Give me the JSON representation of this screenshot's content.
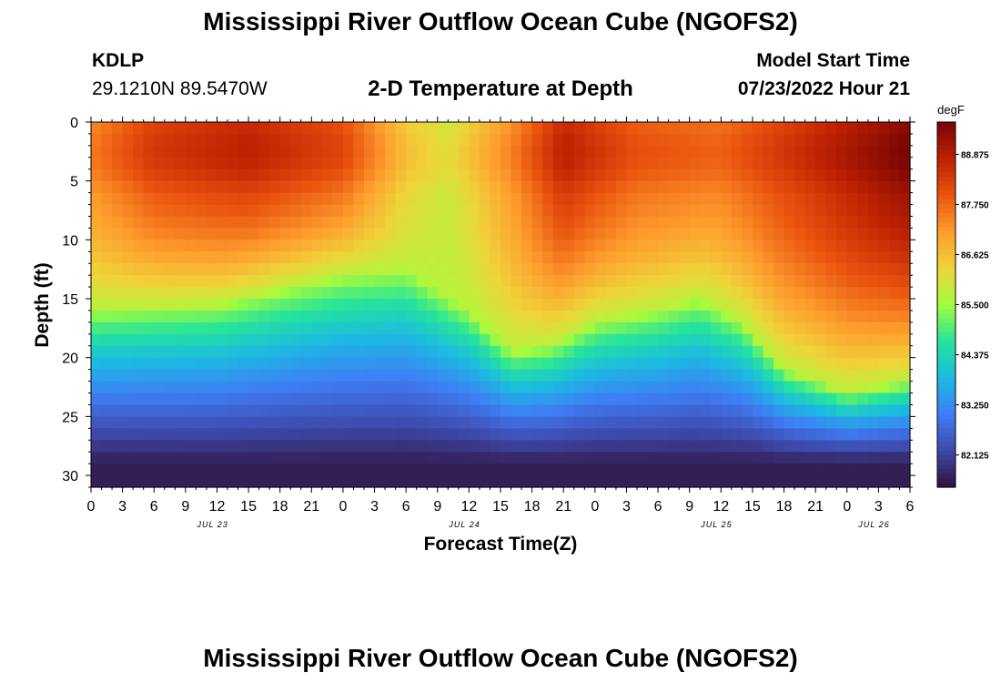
{
  "header": {
    "title": "Mississippi River Outflow Ocean Cube (NGOFS2)",
    "station": "KDLP",
    "coordinates": "29.1210N  89.5470W",
    "subtitle": "2-D Temperature at Depth",
    "model_start_label": "Model Start Time",
    "model_start_value": "07/23/2022 Hour 21"
  },
  "footer": {
    "title": "Mississippi River Outflow Ocean Cube (NGOFS2)"
  },
  "chart_data": {
    "type": "heatmap",
    "xlabel": "Forecast Time(Z)",
    "ylabel": "Depth (ft)",
    "x_hours": [
      0,
      78
    ],
    "ylim": [
      0,
      31
    ],
    "x_tick_labels": [
      "0",
      "3",
      "6",
      "9",
      "12",
      "15",
      "18",
      "21",
      "0",
      "3",
      "6",
      "9",
      "12",
      "15",
      "18",
      "21",
      "0",
      "3",
      "6",
      "9",
      "12",
      "15",
      "18",
      "21",
      "0",
      "3",
      "6"
    ],
    "date_labels": [
      {
        "label": "JUL 23",
        "hour": 12
      },
      {
        "label": "JUL 24",
        "hour": 36
      },
      {
        "label": "JUL 25",
        "hour": 60
      },
      {
        "label": "JUL 26",
        "hour": 75
      }
    ],
    "y_ticks": [
      0,
      5,
      10,
      15,
      20,
      25,
      30
    ],
    "colorbar": {
      "unit": "degF",
      "range": [
        81.4,
        89.6
      ],
      "tick_values": [
        82.125,
        83.25,
        84.375,
        85.5,
        86.625,
        87.75,
        88.875
      ],
      "tick_labels": [
        "82.125",
        "83.250",
        "84.375",
        "85.500",
        "86.625",
        "87.750",
        "88.875"
      ]
    },
    "surface_temperature_profile": [
      {
        "hour": 0,
        "temp": 87.3
      },
      {
        "hour": 6,
        "temp": 88.2
      },
      {
        "hour": 15,
        "temp": 88.6
      },
      {
        "hour": 24,
        "temp": 88.0
      },
      {
        "hour": 30,
        "temp": 86.4
      },
      {
        "hour": 34,
        "temp": 85.9
      },
      {
        "hour": 40,
        "temp": 87.2
      },
      {
        "hour": 45,
        "temp": 88.6
      },
      {
        "hour": 52,
        "temp": 87.8
      },
      {
        "hour": 60,
        "temp": 87.6
      },
      {
        "hour": 68,
        "temp": 88.4
      },
      {
        "hour": 78,
        "temp": 89.4
      }
    ],
    "thermocline_depth_profile": [
      {
        "hour": 0,
        "depth_ft": 16
      },
      {
        "hour": 12,
        "depth_ft": 15.5
      },
      {
        "hour": 24,
        "depth_ft": 13
      },
      {
        "hour": 30,
        "depth_ft": 12.5
      },
      {
        "hour": 36,
        "depth_ft": 16
      },
      {
        "hour": 40,
        "depth_ft": 19.5
      },
      {
        "hour": 44,
        "depth_ft": 19
      },
      {
        "hour": 48,
        "depth_ft": 17
      },
      {
        "hour": 54,
        "depth_ft": 16
      },
      {
        "hour": 58,
        "depth_ft": 15
      },
      {
        "hour": 62,
        "depth_ft": 17
      },
      {
        "hour": 66,
        "depth_ft": 21
      },
      {
        "hour": 72,
        "depth_ft": 23
      },
      {
        "hour": 78,
        "depth_ft": 22
      }
    ],
    "bottom_temperature": 81.6
  }
}
